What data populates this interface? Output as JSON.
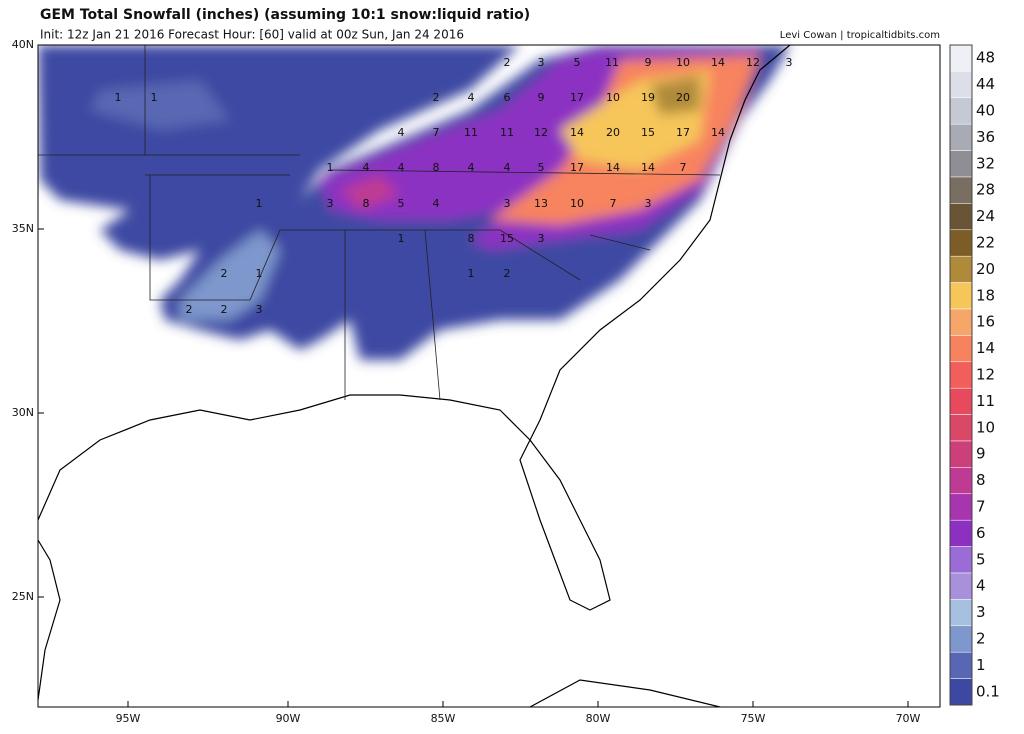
{
  "header": {
    "title": "GEM Total Snowfall (inches) (assuming 10:1 snow:liquid ratio)",
    "subtitle": "Init: 12z Jan 21 2016   Forecast Hour: [60]   valid at 00z Sun, Jan 24 2016",
    "credit": "Levi Cowan | tropicaltidbits.com"
  },
  "map": {
    "lat_labels": [
      "40N",
      "35N",
      "30N",
      "25N"
    ],
    "lon_labels": [
      "95W",
      "90W",
      "85W",
      "80W",
      "75W",
      "70W"
    ],
    "point_labels": [
      2,
      3,
      5,
      11,
      9,
      10,
      14,
      12,
      3,
      1,
      1,
      2,
      4,
      6,
      9,
      17,
      10,
      19,
      20,
      4,
      7,
      11,
      11,
      12,
      14,
      20,
      15,
      17,
      14,
      1,
      4,
      4,
      8,
      4,
      4,
      5,
      17,
      14,
      14,
      7,
      1,
      3,
      8,
      5,
      4,
      3,
      13,
      10,
      7,
      3,
      1,
      8,
      15,
      3,
      2,
      1,
      1,
      2,
      2,
      2,
      3
    ]
  },
  "colorbar": {
    "labels": [
      "48",
      "44",
      "40",
      "36",
      "32",
      "28",
      "24",
      "22",
      "20",
      "18",
      "16",
      "14",
      "12",
      "11",
      "10",
      "9",
      "8",
      "7",
      "6",
      "5",
      "4",
      "3",
      "2",
      "1",
      "0.1"
    ],
    "colors": [
      "#eef0f5",
      "#dcdfe8",
      "#c5c9d3",
      "#a8abb3",
      "#8e8e94",
      "#7a6d62",
      "#6a5436",
      "#7d5d25",
      "#b08a3b",
      "#f6c65a",
      "#f7a66a",
      "#f7835e",
      "#f25e5a",
      "#e84a5d",
      "#d94866",
      "#cc3f79",
      "#bf3b93",
      "#a735ad",
      "#8c30c2",
      "#9b6bd6",
      "#a890da",
      "#a7c0e0",
      "#7e97cc",
      "#5867b3",
      "#3c48a2"
    ]
  }
}
